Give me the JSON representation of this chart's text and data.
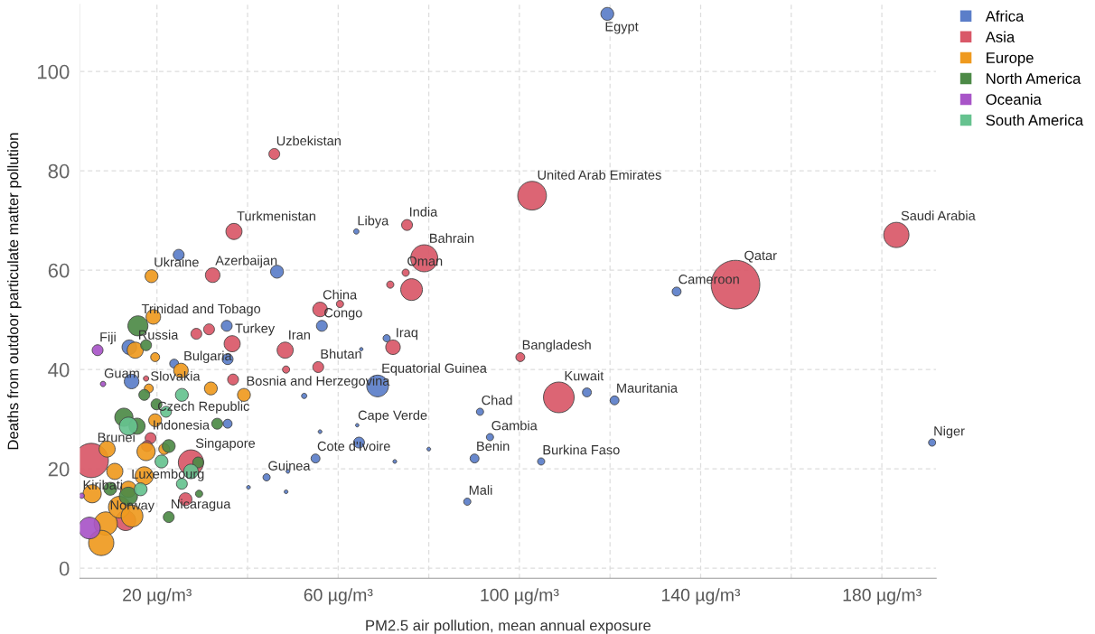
{
  "chart_data": {
    "type": "bubble",
    "xlabel": "PM2.5 air pollution, mean annual exposure",
    "ylabel": "Deaths from outdoor particulate matter pollution",
    "xlim": [
      3,
      192
    ],
    "ylim": [
      -2,
      113.5
    ],
    "xticks": [
      {
        "value": 20,
        "label": "20 µg/m³"
      },
      {
        "value": 40,
        "label": null
      },
      {
        "value": 60,
        "label": "60 µg/m³"
      },
      {
        "value": 80,
        "label": null
      },
      {
        "value": 100,
        "label": "100 µg/m³"
      },
      {
        "value": 120,
        "label": null
      },
      {
        "value": 140,
        "label": "140 µg/m³"
      },
      {
        "value": 160,
        "label": null
      },
      {
        "value": 180,
        "label": "180 µg/m³"
      }
    ],
    "yticks": [
      0,
      20,
      40,
      60,
      80,
      100
    ],
    "grid": true,
    "legend": "top right",
    "series": [
      {
        "name": "Africa",
        "color": "#5b7ec9",
        "x": [
          119.4,
          134.7,
          68.7,
          56.4,
          64.0,
          91.3,
          93.5,
          90.1,
          104.8,
          88.5,
          121.0,
          64.2,
          55.0,
          44.2,
          191.1,
          24.8,
          46.5,
          114.9,
          52.5,
          64.6,
          80.0,
          72.5,
          48.9,
          48.5,
          40.2,
          35.4,
          35.6,
          23.8,
          14.4,
          13.9,
          35.6,
          56.0,
          65.1,
          70.7
        ],
        "values": [
          111.6,
          55.7,
          36.7,
          48.8,
          67.8,
          31.5,
          26.4,
          22.1,
          21.5,
          13.4,
          33.8,
          28.8,
          22.1,
          18.3,
          25.3,
          63.1,
          59.7,
          35.4,
          34.7,
          25.3,
          24.0,
          21.5,
          19.5,
          15.4,
          16.3,
          48.8,
          42.1,
          41.2,
          37.6,
          44.5,
          29.1,
          27.5,
          44.1,
          46.3
        ],
        "sizes": [
          0.07,
          0.034,
          0.2,
          0.05,
          0.012,
          0.022,
          0.022,
          0.034,
          0.022,
          0.022,
          0.034,
          0.005,
          0.034,
          0.022,
          0.022,
          0.05,
          0.07,
          0.034,
          0.012,
          0.05,
          0.006,
          0.006,
          0.006,
          0.006,
          0.006,
          0.05,
          0.05,
          0.034,
          0.09,
          0.09,
          0.034,
          0.006,
          0.005,
          0.022
        ]
      },
      {
        "name": "Asia",
        "color": "#d95868",
        "x": [
          45.9,
          37.0,
          32.3,
          75.2,
          79.0,
          74.9,
          76.2,
          102.8,
          147.7,
          183.2,
          108.7,
          100.2,
          56.0,
          48.3,
          72.1,
          55.6,
          36.6,
          5.5,
          27.5,
          18.6,
          31.5,
          28.7,
          71.5,
          60.4,
          48.5,
          36.8,
          26.3,
          13.1,
          17.8,
          17.6
        ],
        "values": [
          83.4,
          67.8,
          59.0,
          69.1,
          62.4,
          59.5,
          56.1,
          75.0,
          57.1,
          67.1,
          34.4,
          42.5,
          52.1,
          43.9,
          44.5,
          40.5,
          45.2,
          21.7,
          21.3,
          26.2,
          48.1,
          47.2,
          57.1,
          53.2,
          40.0,
          38.0,
          13.9,
          9.6,
          24.6,
          38.2
        ],
        "sizes": [
          0.05,
          0.11,
          0.09,
          0.05,
          0.31,
          0.022,
          0.2,
          0.35,
          1,
          0.27,
          0.4,
          0.034,
          0.09,
          0.11,
          0.09,
          0.05,
          0.11,
          0.5,
          0.27,
          0.05,
          0.05,
          0.05,
          0.022,
          0.022,
          0.022,
          0.05,
          0.07,
          0.17,
          0.05,
          0.012
        ]
      },
      {
        "name": "Europe",
        "color": "#ef9a1f",
        "x": [
          18.8,
          15.2,
          25.3,
          18.2,
          19.6,
          13.7,
          8.7,
          39.2,
          31.9,
          19.2,
          19.6,
          17.6,
          17.2,
          7.7,
          11.7,
          5.7,
          10.7,
          21.6,
          14.5,
          9.0
        ],
        "values": [
          58.8,
          43.9,
          39.8,
          36.2,
          29.8,
          15.9,
          9.0,
          34.9,
          36.2,
          50.6,
          42.5,
          23.5,
          18.6,
          5.1,
          12.3,
          15.0,
          19.5,
          24.0,
          10.5,
          24.0
        ],
        "sizes": [
          0.07,
          0.11,
          0.09,
          0.034,
          0.07,
          0.11,
          0.23,
          0.07,
          0.07,
          0.09,
          0.034,
          0.14,
          0.14,
          0.27,
          0.2,
          0.14,
          0.11,
          0.05,
          0.2,
          0.11
        ]
      },
      {
        "name": "North America",
        "color": "#4d8a47",
        "x": [
          15.8,
          22.6,
          17.6,
          17.2,
          19.9,
          12.7,
          15.6,
          22.6,
          33.3,
          29.1,
          13.7,
          29.3,
          9.7
        ],
        "values": [
          48.8,
          10.3,
          44.9,
          34.9,
          33.0,
          30.4,
          28.6,
          24.6,
          29.1,
          21.3,
          14.5,
          15.0,
          16.0
        ],
        "sizes": [
          0.17,
          0.05,
          0.05,
          0.05,
          0.05,
          0.14,
          0.11,
          0.07,
          0.05,
          0.05,
          0.14,
          0.022,
          0.07
        ]
      },
      {
        "name": "Oceania",
        "color": "#a855c8",
        "x": [
          6.9,
          3.4,
          8.1,
          5.1
        ],
        "values": [
          43.9,
          14.6,
          37.1,
          8.1
        ],
        "sizes": [
          0.05,
          0.012,
          0.012,
          0.2
        ]
      },
      {
        "name": "South America",
        "color": "#66c28f",
        "x": [
          25.5,
          13.7,
          27.5,
          16.4,
          22.0,
          21.0,
          25.5
        ],
        "values": [
          34.9,
          28.6,
          19.5,
          15.9,
          31.5,
          21.5,
          17.0
        ],
        "sizes": [
          0.07,
          0.14,
          0.09,
          0.07,
          0.05,
          0.07,
          0.05
        ]
      }
    ],
    "annotations": [
      {
        "text": "Egypt",
        "x": 119.4,
        "y": 111.6
      },
      {
        "text": "Cameroon",
        "x": 134.7,
        "y": 55.7
      },
      {
        "text": "Equatorial Guinea",
        "x": 68.7,
        "y": 36.7
      },
      {
        "text": "Congo",
        "x": 56.4,
        "y": 48.8
      },
      {
        "text": "Libya",
        "x": 64.0,
        "y": 67.8
      },
      {
        "text": "Chad",
        "x": 91.3,
        "y": 31.5
      },
      {
        "text": "Gambia",
        "x": 93.5,
        "y": 26.4
      },
      {
        "text": "Benin",
        "x": 90.1,
        "y": 22.1
      },
      {
        "text": "Burkina Faso",
        "x": 104.8,
        "y": 21.5
      },
      {
        "text": "Mali",
        "x": 88.5,
        "y": 13.4
      },
      {
        "text": "Mauritania",
        "x": 121.0,
        "y": 33.8
      },
      {
        "text": "Cape Verde",
        "x": 64.2,
        "y": 28.8
      },
      {
        "text": "Cote d'Ivoire",
        "x": 55.0,
        "y": 22.1
      },
      {
        "text": "Guinea",
        "x": 44.2,
        "y": 18.3
      },
      {
        "text": "Niger",
        "x": 191.1,
        "y": 25.3
      },
      {
        "text": "Uzbekistan",
        "x": 45.9,
        "y": 83.4
      },
      {
        "text": "Turkmenistan",
        "x": 37.0,
        "y": 67.8
      },
      {
        "text": "Azerbaijan",
        "x": 32.3,
        "y": 59.0
      },
      {
        "text": "India",
        "x": 75.2,
        "y": 69.1
      },
      {
        "text": "Bahrain",
        "x": 79.0,
        "y": 62.4
      },
      {
        "text": "Oman",
        "x": 74.9,
        "y": 59.5
      },
      {
        "text": "United Arab Emirates",
        "x": 102.8,
        "y": 75.0
      },
      {
        "text": "Qatar",
        "x": 147.7,
        "y": 57.1
      },
      {
        "text": "Saudi Arabia",
        "x": 183.2,
        "y": 67.1
      },
      {
        "text": "Kuwait",
        "x": 108.7,
        "y": 34.4
      },
      {
        "text": "Bangladesh",
        "x": 100.2,
        "y": 42.5
      },
      {
        "text": "China",
        "x": 56.0,
        "y": 52.1
      },
      {
        "text": "Iran",
        "x": 48.3,
        "y": 43.9
      },
      {
        "text": "Iraq",
        "x": 72.1,
        "y": 44.5
      },
      {
        "text": "Bhutan",
        "x": 55.6,
        "y": 40.5
      },
      {
        "text": "Turkey",
        "x": 36.6,
        "y": 45.2
      },
      {
        "text": "Brunei",
        "x": 5.5,
        "y": 21.7
      },
      {
        "text": "Singapore",
        "x": 27.5,
        "y": 21.3
      },
      {
        "text": "Indonesia",
        "x": 18.6,
        "y": 26.2
      },
      {
        "text": "Ukraine",
        "x": 18.8,
        "y": 58.8
      },
      {
        "text": "Russia",
        "x": 15.2,
        "y": 43.9
      },
      {
        "text": "Bulgaria",
        "x": 25.3,
        "y": 39.8
      },
      {
        "text": "Slovakia",
        "x": 18.2,
        "y": 36.2
      },
      {
        "text": "Czech Republic",
        "x": 19.6,
        "y": 29.8
      },
      {
        "text": "Luxembourg",
        "x": 13.7,
        "y": 15.9
      },
      {
        "text": "Norway",
        "x": 8.7,
        "y": 9.0
      },
      {
        "text": "Bosnia and Herzegovina",
        "x": 39.2,
        "y": 34.9
      },
      {
        "text": "Trinidad and Tobago",
        "x": 15.8,
        "y": 48.8
      },
      {
        "text": "Nicaragua",
        "x": 22.6,
        "y": 10.3
      },
      {
        "text": "Fiji",
        "x": 6.9,
        "y": 43.9
      },
      {
        "text": "Kiribati",
        "x": 3.4,
        "y": 14.6
      },
      {
        "text": "Guam",
        "x": 8.1,
        "y": 37.1
      }
    ]
  }
}
